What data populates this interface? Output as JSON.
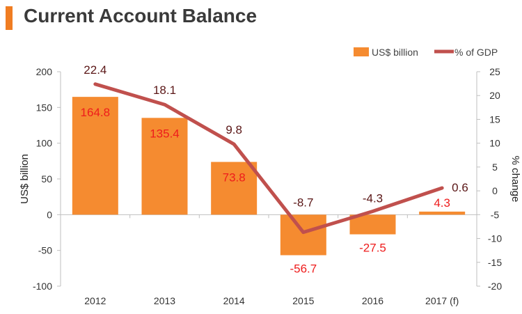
{
  "title": "Current Account Balance",
  "colors": {
    "accent": "#f07d22",
    "bar": "#f58b30",
    "line": "#c0504d",
    "bar_label": "#ee1c1c",
    "line_label": "#5a1616",
    "title": "#3a3a3a"
  },
  "chart_data": {
    "type": "bar",
    "title": "Current Account Balance",
    "categories": [
      "2012",
      "2013",
      "2014",
      "2015",
      "2016",
      "2017 (f)"
    ],
    "series": [
      {
        "name": "US$ billion",
        "type": "bar",
        "axis": "left",
        "values": [
          164.8,
          135.4,
          73.8,
          -56.7,
          -27.5,
          4.3
        ],
        "labels": [
          "164.8",
          "135.4",
          "73.8",
          "-56.7",
          "-27.5",
          "4.3"
        ]
      },
      {
        "name": "% of GDP",
        "type": "line",
        "axis": "right",
        "values": [
          22.4,
          18.1,
          9.8,
          -8.7,
          -4.3,
          0.6
        ],
        "labels": [
          "22.4",
          "18.1",
          "9.8",
          "-8.7",
          "-4.3",
          "0.6"
        ]
      }
    ],
    "ylabel": "US$ billion",
    "ylim": [
      -100,
      200
    ],
    "yticks": [
      "200",
      "150",
      "100",
      "50",
      "0",
      "-50",
      "-100"
    ],
    "y2label": "% change",
    "y2lim": [
      -20,
      25
    ],
    "y2ticks": [
      "25",
      "20",
      "15",
      "10",
      "5",
      "0",
      "-5",
      "-10",
      "-15",
      "-20"
    ],
    "legend": "top-right",
    "grid": false
  }
}
